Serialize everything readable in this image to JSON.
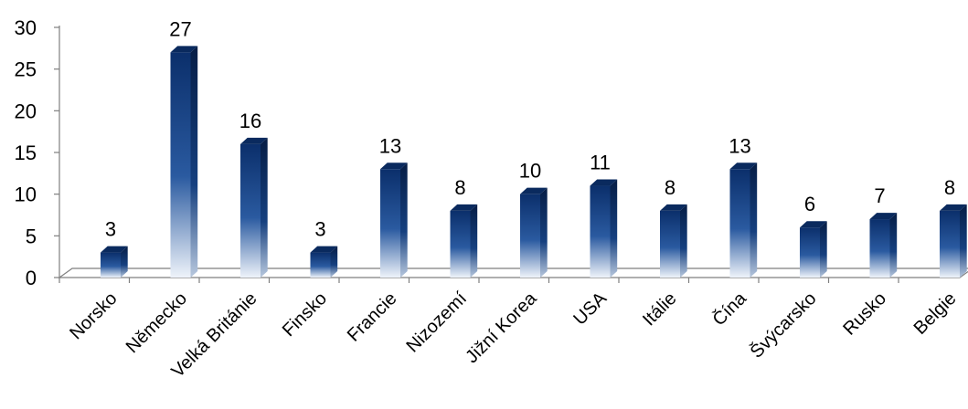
{
  "chart_data": {
    "type": "bar",
    "categories": [
      "Norsko",
      "Německo",
      "Velká Británie",
      "Finsko",
      "Francie",
      "Nizozemí",
      "Jižní Korea",
      "USA",
      "Itálie",
      "Čína",
      "Švýcarsko",
      "Rusko",
      "Belgie"
    ],
    "values": [
      3,
      27,
      16,
      3,
      13,
      8,
      10,
      11,
      8,
      13,
      6,
      7,
      8
    ],
    "title": "",
    "xlabel": "",
    "ylabel": "",
    "ylim": [
      0,
      30
    ],
    "yticks": [
      "0",
      "5",
      "10",
      "15",
      "20",
      "25",
      "30"
    ],
    "data_labels": [
      "3",
      "27",
      "16",
      "3",
      "13",
      "8",
      "10",
      "11",
      "8",
      "13",
      "6",
      "7",
      "8"
    ],
    "grid": false,
    "legend": "none",
    "style": "3d-column"
  },
  "colors": {
    "bar_dark": "#0b2f6b",
    "bar_mid": "#1f4f96",
    "bar_light": "#e6eef8",
    "bar_top": "#0a2a5e",
    "bar_side": "#061d45",
    "floor": "#c8c8c8",
    "axis": "#7f7f7f"
  }
}
